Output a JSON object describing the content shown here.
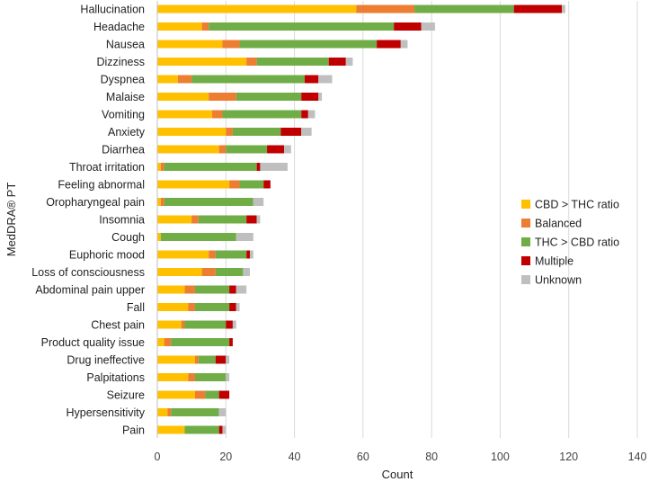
{
  "chart_data": {
    "type": "bar",
    "orientation": "horizontal",
    "stacked": true,
    "title": "",
    "xlabel": "Count",
    "ylabel": "MedDRA® PT",
    "xlim": [
      0,
      140
    ],
    "xticks": [
      0,
      20,
      40,
      60,
      80,
      100,
      120,
      140
    ],
    "grid": true,
    "legend_position": "right",
    "categories": [
      "Hallucination",
      "Headache",
      "Nausea",
      "Dizziness",
      "Dyspnea",
      "Malaise",
      "Vomiting",
      "Anxiety",
      "Diarrhea",
      "Throat irritation",
      "Feeling abnormal",
      "Oropharyngeal pain",
      "Insomnia",
      "Cough",
      "Euphoric mood",
      "Loss of consciousness",
      "Abdominal pain upper",
      "Fall",
      "Chest pain",
      "Product quality issue",
      "Drug ineffective",
      "Palpitations",
      "Seizure",
      "Hypersensitivity",
      "Pain"
    ],
    "series": [
      {
        "name": "CBD > THC ratio",
        "color": "#FFC000",
        "values": [
          58,
          13,
          19,
          26,
          6,
          15,
          16,
          20,
          18,
          1,
          21,
          1,
          10,
          1,
          15,
          13,
          8,
          9,
          7,
          2,
          11,
          9,
          11,
          3,
          8
        ]
      },
      {
        "name": "Balanced",
        "color": "#ED7D31",
        "values": [
          17,
          2,
          5,
          3,
          4,
          8,
          3,
          2,
          2,
          1,
          3,
          1,
          2,
          0,
          2,
          4,
          3,
          2,
          1,
          2,
          1,
          2,
          3,
          1,
          0
        ]
      },
      {
        "name": "THC > CBD ratio",
        "color": "#70AD47",
        "values": [
          29,
          54,
          40,
          21,
          33,
          19,
          23,
          14,
          12,
          27,
          7,
          26,
          14,
          22,
          9,
          8,
          10,
          10,
          12,
          17,
          5,
          9,
          4,
          14,
          10
        ]
      },
      {
        "name": "Multiple",
        "color": "#C00000",
        "values": [
          14,
          8,
          7,
          5,
          4,
          5,
          2,
          6,
          5,
          1,
          2,
          0,
          3,
          0,
          1,
          0,
          2,
          2,
          2,
          1,
          3,
          0,
          3,
          0,
          1
        ]
      },
      {
        "name": "Unknown",
        "color": "#BFBFBF",
        "values": [
          1,
          4,
          2,
          2,
          4,
          1,
          2,
          3,
          2,
          8,
          0,
          3,
          1,
          5,
          1,
          2,
          3,
          1,
          1,
          0,
          1,
          1,
          0,
          2,
          1
        ]
      }
    ]
  }
}
